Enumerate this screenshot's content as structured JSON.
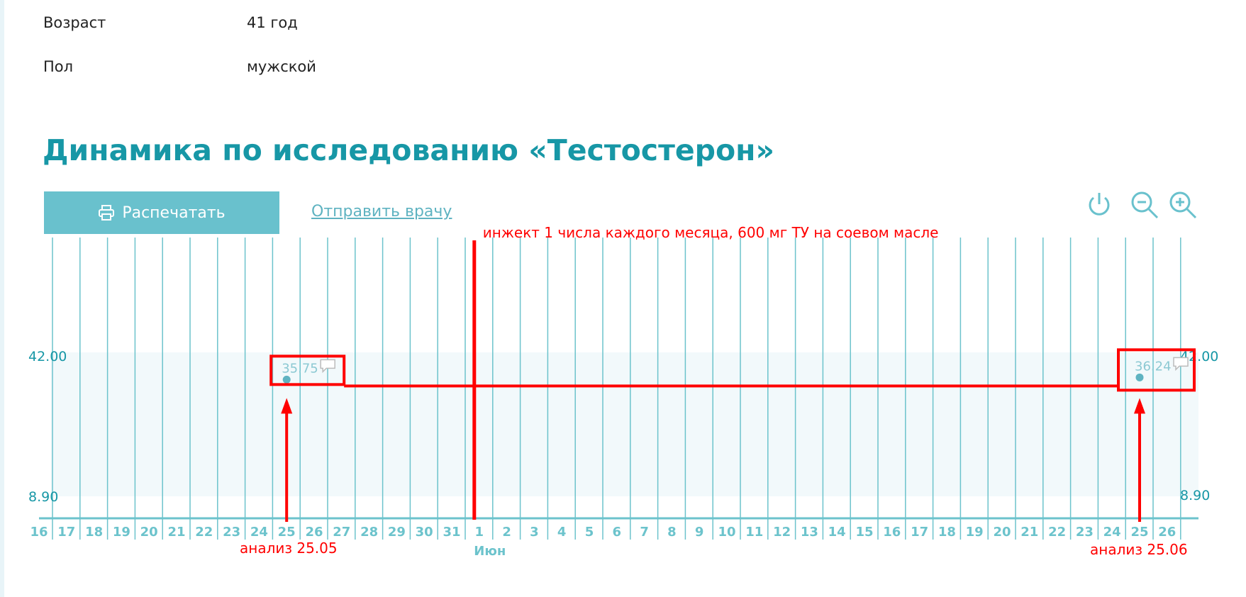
{
  "patient": {
    "age_label": "Возраст",
    "age_value": "41 год",
    "sex_label": "Пол",
    "sex_value": "мужской"
  },
  "page_title": "Динамика по исследованию «Тестостерон»",
  "toolbar": {
    "print_label": "Распечатать",
    "send_label": "Отправить врачу",
    "icons": [
      "power-icon",
      "zoom-out-icon",
      "zoom-in-icon"
    ]
  },
  "colors": {
    "accent": "#1797a6",
    "button": "#69c1cd",
    "grid": "#6cc3cc",
    "annotation": "#ff0000"
  },
  "chart_data": {
    "type": "line",
    "x_ticks": [
      "16",
      "17",
      "18",
      "19",
      "20",
      "21",
      "22",
      "23",
      "24",
      "25",
      "26",
      "27",
      "28",
      "29",
      "30",
      "31",
      "1",
      "2",
      "3",
      "4",
      "5",
      "6",
      "7",
      "8",
      "9",
      "10",
      "11",
      "12",
      "13",
      "14",
      "15",
      "16",
      "17",
      "18",
      "19",
      "20",
      "21",
      "22",
      "23",
      "24",
      "25",
      "26"
    ],
    "month_label": "Июн",
    "ref_range": [
      8.9,
      42.0
    ],
    "ref_labels": [
      "42.00",
      "8.90"
    ],
    "series": [
      {
        "points": [
          {
            "x": "2024-05-25",
            "y": 35.75,
            "label": "35.75"
          },
          {
            "x": "2024-06-25",
            "y": 36.24,
            "label": "36.24"
          }
        ]
      }
    ]
  },
  "annotations": {
    "top_note": "инжект 1 числа каждого месяца, 600 мг ТУ на соевом масле",
    "left_note": "анализ 25.05",
    "right_note": "анализ 25.06"
  }
}
